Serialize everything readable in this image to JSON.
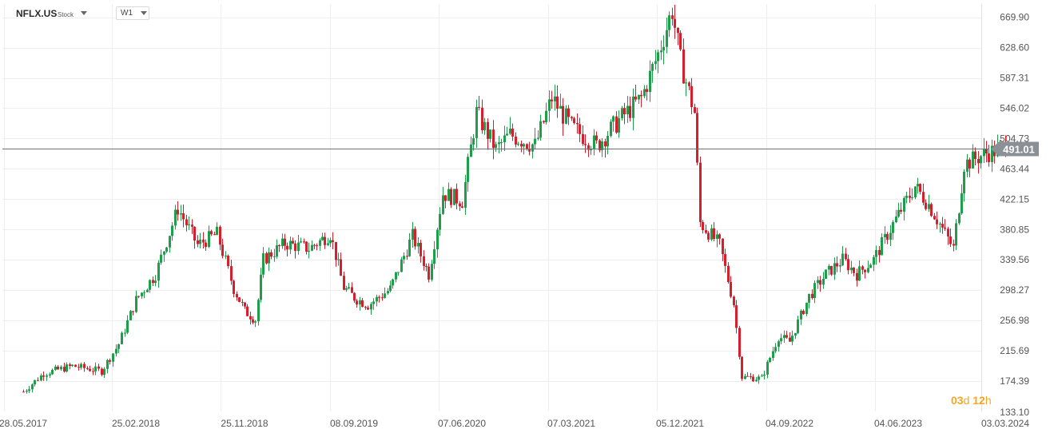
{
  "header": {
    "symbol": "NFLX.US",
    "type": "Stock",
    "timeframe": "W1"
  },
  "countdown": {
    "days": "03",
    "d": "d",
    "hours": "12",
    "h": "h"
  },
  "colors": {
    "up": "#1e9e4a",
    "down": "#d4202c",
    "grid": "#eeeeee",
    "price_line": "#707070",
    "price_tag": "#8a9096",
    "countdown": "#f5a623"
  },
  "chart_data": {
    "type": "candlestick",
    "y_ticks": [
      669.9,
      628.6,
      587.31,
      546.02,
      504.73,
      463.44,
      422.15,
      380.85,
      339.56,
      298.27,
      256.98,
      215.69,
      174.39,
      133.1
    ],
    "x_ticks": [
      "28.05.2017",
      "25.02.2018",
      "25.11.2018",
      "08.09.2019",
      "07.06.2020",
      "07.03.2021",
      "05.12.2021",
      "04.09.2022",
      "04.06.2023",
      "03.03.2024"
    ],
    "ylim": [
      133.1,
      688.0
    ],
    "current_price": 491.01,
    "grid": true,
    "anchors": [
      [
        "2017-05-28",
        160
      ],
      [
        "2017-07-16",
        185
      ],
      [
        "2017-09-24",
        195
      ],
      [
        "2017-12-03",
        188
      ],
      [
        "2018-01-14",
        225
      ],
      [
        "2018-02-25",
        285
      ],
      [
        "2018-04-15",
        320
      ],
      [
        "2018-06-10",
        410
      ],
      [
        "2018-07-29",
        360
      ],
      [
        "2018-09-16",
        375
      ],
      [
        "2018-10-28",
        300
      ],
      [
        "2018-11-25",
        270
      ],
      [
        "2018-12-23",
        258
      ],
      [
        "2019-01-13",
        340
      ],
      [
        "2019-03-10",
        362
      ],
      [
        "2019-05-12",
        355
      ],
      [
        "2019-07-07",
        375
      ],
      [
        "2019-08-11",
        302
      ],
      [
        "2019-09-08",
        288
      ],
      [
        "2019-10-13",
        278
      ],
      [
        "2019-12-08",
        300
      ],
      [
        "2020-02-02",
        372
      ],
      [
        "2020-03-15",
        320
      ],
      [
        "2020-04-19",
        430
      ],
      [
        "2020-06-07",
        420
      ],
      [
        "2020-07-12",
        540
      ],
      [
        "2020-08-30",
        490
      ],
      [
        "2020-10-04",
        510
      ],
      [
        "2020-12-06",
        495
      ],
      [
        "2021-01-17",
        560
      ],
      [
        "2021-03-07",
        520
      ],
      [
        "2021-05-09",
        495
      ],
      [
        "2021-07-04",
        530
      ],
      [
        "2021-08-29",
        560
      ],
      [
        "2021-10-10",
        620
      ],
      [
        "2021-11-14",
        680
      ],
      [
        "2021-12-05",
        610
      ],
      [
        "2022-01-09",
        540
      ],
      [
        "2022-01-23",
        390
      ],
      [
        "2022-03-13",
        360
      ],
      [
        "2022-04-17",
        280
      ],
      [
        "2022-05-08",
        180
      ],
      [
        "2022-06-26",
        178
      ],
      [
        "2022-08-07",
        235
      ],
      [
        "2022-09-04",
        228
      ],
      [
        "2022-10-23",
        290
      ],
      [
        "2022-12-04",
        320
      ],
      [
        "2023-01-15",
        340
      ],
      [
        "2023-02-19",
        320
      ],
      [
        "2023-04-02",
        340
      ],
      [
        "2023-05-28",
        395
      ],
      [
        "2023-07-16",
        440
      ],
      [
        "2023-08-20",
        415
      ],
      [
        "2023-10-22",
        355
      ],
      [
        "2023-11-19",
        470
      ],
      [
        "2024-01-14",
        485
      ],
      [
        "2024-03-03",
        491
      ]
    ]
  }
}
